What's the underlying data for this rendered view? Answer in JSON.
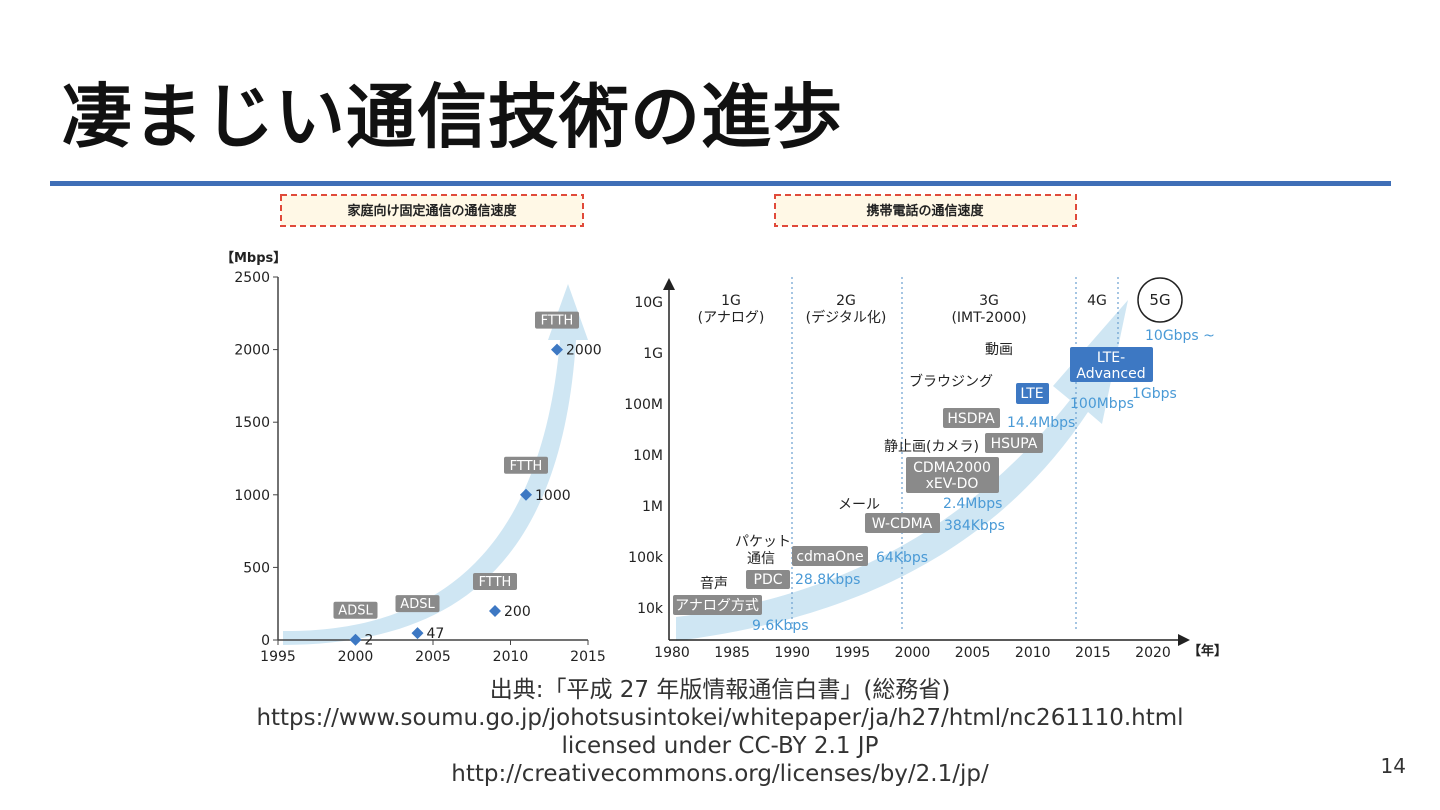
{
  "slide": {
    "title": "凄まじい通信技術の進歩",
    "page_number": "14",
    "source_lines": [
      "出典:「平成 27 年版情報通信白書」(総務省)",
      "https://www.soumu.go.jp/johotsusintokei/whitepaper/ja/h27/html/nc261110.html",
      "licensed under CC-BY 2.1 JP",
      "http://creativecommons.org/licenses/by/2.1/jp/"
    ],
    "accent_color": "#3f6fb7"
  },
  "chart_data": [
    {
      "type": "scatter",
      "title": "家庭向け固定通信の通信速度",
      "ylabel": "【Mbps】",
      "xlim": [
        1995,
        2015
      ],
      "ylim": [
        0,
        2500
      ],
      "x_ticks": [
        "1995",
        "2000",
        "2005",
        "2010",
        "2015"
      ],
      "y_ticks": [
        "0",
        "500",
        "1000",
        "1500",
        "2000",
        "2500"
      ],
      "points": [
        {
          "x": 2000,
          "y": 2,
          "tech": "ADSL",
          "label": "2"
        },
        {
          "x": 2004,
          "y": 47,
          "tech": "ADSL",
          "label": "47"
        },
        {
          "x": 2009,
          "y": 200,
          "tech": "FTTH",
          "label": "200"
        },
        {
          "x": 2011,
          "y": 1000,
          "tech": "FTTH",
          "label": "1000"
        },
        {
          "x": 2013,
          "y": 2000,
          "tech": "FTTH",
          "label": "2000"
        }
      ],
      "marker_color": "#3d78c3",
      "arrow_color": "#cfe6f3"
    },
    {
      "type": "timeline",
      "title": "携帯電話の通信速度",
      "xlabel": "【年】",
      "x_ticks": [
        "1980",
        "1985",
        "1990",
        "1995",
        "2000",
        "2005",
        "2010",
        "2015",
        "2020"
      ],
      "y_ticks": [
        "10G",
        "1G",
        "100M",
        "10M",
        "1M",
        "100k",
        "10k"
      ],
      "generations": [
        {
          "name": "1G",
          "note": "(アナログ)"
        },
        {
          "name": "2G",
          "note": "(デジタル化)"
        },
        {
          "name": "3G",
          "note": "(IMT-2000)"
        },
        {
          "name": "4G",
          "note": ""
        },
        {
          "name": "5G",
          "note": ""
        }
      ],
      "technologies": [
        {
          "name": "アナログ方式",
          "speed": "9.6Kbps",
          "style": "gray"
        },
        {
          "name": "PDC",
          "speed": "28.8Kbps",
          "style": "gray"
        },
        {
          "name": "cdmaOne",
          "speed": "64Kbps",
          "style": "gray"
        },
        {
          "name": "W-CDMA",
          "speed": "384Kbps",
          "style": "gray"
        },
        {
          "name": "CDMA2000 xEV-DO",
          "speed": "2.4Mbps",
          "style": "gray"
        },
        {
          "name": "HSUPA",
          "speed": "",
          "style": "gray"
        },
        {
          "name": "HSDPA",
          "speed": "14.4Mbps",
          "style": "gray"
        },
        {
          "name": "LTE",
          "speed": "100Mbps",
          "style": "blue"
        },
        {
          "name": "LTE-Advanced",
          "speed": "1Gbps",
          "style": "blue"
        },
        {
          "name": "5G",
          "speed": "10Gbps ~",
          "style": "circle"
        }
      ],
      "services": [
        "音声",
        "パケット通信",
        "メール",
        "静止画(カメラ)",
        "ブラウジング",
        "動画"
      ],
      "arrow_color": "#cfe6f3",
      "speed_color": "#4a9ad6"
    }
  ]
}
